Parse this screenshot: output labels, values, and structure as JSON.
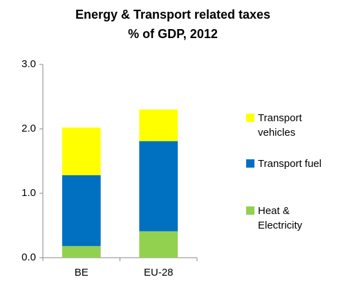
{
  "chart_data": {
    "type": "stacked_bar",
    "title": "Energy & Transport related taxes",
    "subtitle": "% of GDP, 2012",
    "categories": [
      "BE",
      "EU-28"
    ],
    "series": [
      {
        "name": "Heat & Electricity",
        "color": "#92d050",
        "values": [
          0.18,
          0.41
        ]
      },
      {
        "name": "Transport fuel",
        "color": "#0070c0",
        "values": [
          1.1,
          1.4
        ]
      },
      {
        "name": "Transport vehicles",
        "color": "#ffff00",
        "values": [
          0.74,
          0.49
        ]
      }
    ],
    "ylim": [
      0,
      3
    ],
    "yticks": [
      {
        "value": 0,
        "label": "0.0"
      },
      {
        "value": 1,
        "label": "1.0"
      },
      {
        "value": 2,
        "label": "2.0"
      },
      {
        "value": 3,
        "label": "3.0"
      }
    ],
    "grid": false,
    "legend": "right"
  }
}
